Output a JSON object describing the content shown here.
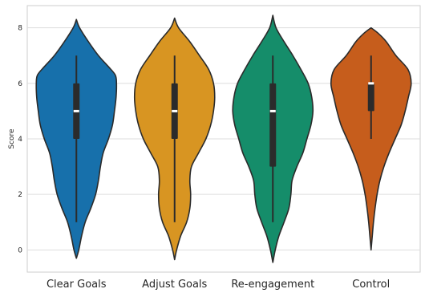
{
  "chart_data": {
    "type": "violin",
    "title": "",
    "xlabel": "",
    "ylabel": "Score",
    "ylim": [
      -0.8,
      8.8
    ],
    "y_ticks": [
      0,
      2,
      4,
      6,
      8
    ],
    "grid": "horizontal",
    "categories": [
      "Clear Goals",
      "Adjust Goals",
      "Re-engagement",
      "Control"
    ],
    "colors": [
      "#1770ab",
      "#d89522",
      "#158d6a",
      "#c65d1c"
    ],
    "series": [
      {
        "category": "Clear Goals",
        "whisker": [
          1,
          7
        ],
        "q1": 4,
        "median": 5,
        "q3": 6,
        "extent": [
          -0.3,
          8.3
        ],
        "density": [
          [
            -0.3,
            0.0
          ],
          [
            0,
            0.06
          ],
          [
            0.5,
            0.13
          ],
          [
            1,
            0.22
          ],
          [
            1.5,
            0.36
          ],
          [
            2,
            0.48
          ],
          [
            2.5,
            0.55
          ],
          [
            3,
            0.6
          ],
          [
            3.5,
            0.67
          ],
          [
            4,
            0.8
          ],
          [
            4.5,
            0.9
          ],
          [
            5,
            0.95
          ],
          [
            5.5,
            0.99
          ],
          [
            6,
            1.0
          ],
          [
            6.3,
            0.97
          ],
          [
            6.6,
            0.8
          ],
          [
            7,
            0.55
          ],
          [
            7.5,
            0.3
          ],
          [
            8,
            0.08
          ],
          [
            8.3,
            0.0
          ]
        ]
      },
      {
        "category": "Adjust Goals",
        "whisker": [
          1,
          7
        ],
        "q1": 4,
        "median": 5,
        "q3": 6,
        "extent": [
          -0.35,
          8.35
        ],
        "density": [
          [
            -0.35,
            0.0
          ],
          [
            0,
            0.05
          ],
          [
            0.5,
            0.15
          ],
          [
            1,
            0.3
          ],
          [
            1.5,
            0.38
          ],
          [
            2,
            0.4
          ],
          [
            2.5,
            0.38
          ],
          [
            3,
            0.42
          ],
          [
            3.5,
            0.6
          ],
          [
            4,
            0.78
          ],
          [
            4.5,
            0.9
          ],
          [
            5,
            0.97
          ],
          [
            5.5,
            1.0
          ],
          [
            6,
            0.97
          ],
          [
            6.5,
            0.85
          ],
          [
            7,
            0.62
          ],
          [
            7.5,
            0.38
          ],
          [
            8,
            0.1
          ],
          [
            8.35,
            0.0
          ]
        ]
      },
      {
        "category": "Re-engagement",
        "whisker": [
          1,
          7
        ],
        "q1": 3,
        "median": 5,
        "q3": 6,
        "extent": [
          -0.45,
          8.45
        ],
        "density": [
          [
            -0.45,
            0.0
          ],
          [
            0,
            0.06
          ],
          [
            0.5,
            0.15
          ],
          [
            1,
            0.28
          ],
          [
            1.5,
            0.4
          ],
          [
            2,
            0.45
          ],
          [
            2.5,
            0.48
          ],
          [
            3,
            0.6
          ],
          [
            3.5,
            0.75
          ],
          [
            4,
            0.85
          ],
          [
            4.5,
            0.95
          ],
          [
            5,
            1.0
          ],
          [
            5.5,
            0.97
          ],
          [
            6,
            0.88
          ],
          [
            6.5,
            0.7
          ],
          [
            7,
            0.5
          ],
          [
            7.5,
            0.28
          ],
          [
            8,
            0.08
          ],
          [
            8.45,
            0.0
          ]
        ]
      },
      {
        "category": "Control",
        "whisker": [
          4,
          7
        ],
        "q1": 5,
        "median": 6,
        "q3": 6,
        "extent": [
          0,
          8
        ],
        "density": [
          [
            0,
            0.0
          ],
          [
            0.5,
            0.03
          ],
          [
            1,
            0.06
          ],
          [
            1.5,
            0.1
          ],
          [
            2,
            0.15
          ],
          [
            2.5,
            0.22
          ],
          [
            3,
            0.32
          ],
          [
            3.5,
            0.45
          ],
          [
            4,
            0.6
          ],
          [
            4.5,
            0.75
          ],
          [
            5,
            0.85
          ],
          [
            5.5,
            0.93
          ],
          [
            6,
            1.0
          ],
          [
            6.5,
            0.92
          ],
          [
            7,
            0.62
          ],
          [
            7.5,
            0.38
          ],
          [
            7.8,
            0.18
          ],
          [
            8,
            0.0
          ]
        ]
      }
    ]
  }
}
